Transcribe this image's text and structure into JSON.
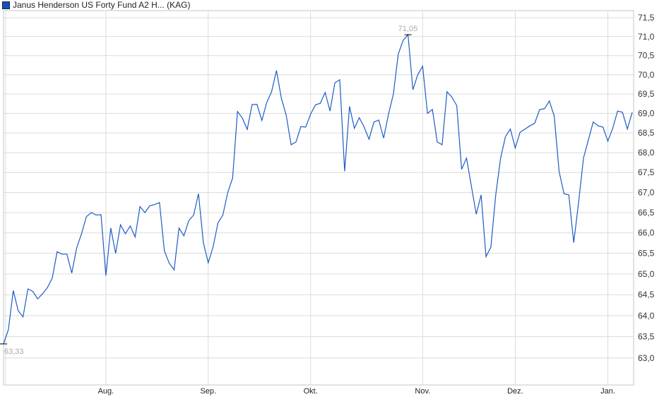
{
  "chart_data": {
    "type": "line",
    "title": "",
    "legend": {
      "label": "Janus Henderson US Forty Fund A2 H... (KAG)",
      "placement": "top-left",
      "color": "#1a4fb0"
    },
    "line_color": "#1f5bc6",
    "y_scale": "log",
    "ylim": [
      62.37,
      71.69
    ],
    "grid": true,
    "y_ticks": [
      "63,0",
      "63,5",
      "64,0",
      "64,5",
      "65,0",
      "65,5",
      "66,0",
      "66,5",
      "67,0",
      "67,5",
      "68,0",
      "68,5",
      "69,0",
      "69,5",
      "70,0",
      "70,5",
      "71,0",
      "71,5"
    ],
    "y_tick_values": [
      63.0,
      63.5,
      64.0,
      64.5,
      65.0,
      65.5,
      66.0,
      66.5,
      67.0,
      67.5,
      68.0,
      68.5,
      69.0,
      69.5,
      70.0,
      70.5,
      71.0,
      71.5
    ],
    "x_ticks": [
      {
        "label": "Aug.",
        "index": 21
      },
      {
        "label": "Sep.",
        "index": 42
      },
      {
        "label": "Okt.",
        "index": 63
      },
      {
        "label": "Nov.",
        "index": 86
      },
      {
        "label": "Dez.",
        "index": 105
      },
      {
        "label": "Jan.",
        "index": 124
      }
    ],
    "annotations": [
      {
        "label": "63,33",
        "index": 0,
        "value": 63.33,
        "position": "below"
      },
      {
        "label": "71,05",
        "index": 83,
        "value": 71.05,
        "position": "above"
      }
    ],
    "series": [
      {
        "values": [
          63.33,
          63.67,
          64.6,
          64.12,
          63.97,
          64.64,
          64.58,
          64.4,
          64.52,
          64.67,
          64.9,
          65.54,
          65.48,
          65.48,
          65.02,
          65.63,
          65.98,
          66.4,
          66.5,
          66.44,
          66.45,
          64.96,
          66.12,
          65.5,
          66.2,
          65.98,
          66.17,
          65.9,
          66.65,
          66.5,
          66.67,
          66.7,
          66.75,
          65.56,
          65.26,
          65.1,
          66.12,
          65.93,
          66.3,
          66.44,
          66.97,
          65.76,
          65.27,
          65.66,
          66.25,
          66.44,
          67.0,
          67.36,
          69.05,
          68.88,
          68.59,
          69.23,
          69.23,
          68.82,
          69.28,
          69.56,
          70.11,
          69.39,
          68.95,
          68.2,
          68.27,
          68.66,
          68.65,
          68.98,
          69.22,
          69.26,
          69.54,
          69.06,
          69.79,
          69.87,
          67.53,
          69.18,
          68.62,
          68.89,
          68.65,
          68.34,
          68.78,
          68.83,
          68.37,
          68.98,
          69.5,
          70.54,
          70.9,
          71.05,
          69.61,
          70.0,
          70.22,
          69.0,
          69.1,
          68.27,
          68.2,
          69.56,
          69.42,
          69.2,
          67.58,
          67.86,
          67.16,
          66.46,
          66.94,
          65.42,
          65.65,
          66.94,
          67.86,
          68.41,
          68.6,
          68.12,
          68.52,
          68.6,
          68.68,
          68.75,
          69.1,
          69.12,
          69.32,
          68.93,
          67.53,
          66.97,
          66.94,
          65.76,
          66.75,
          67.86,
          68.32,
          68.78,
          68.68,
          68.65,
          68.29,
          68.62,
          69.06,
          69.03,
          68.6,
          69.03
        ]
      }
    ]
  }
}
